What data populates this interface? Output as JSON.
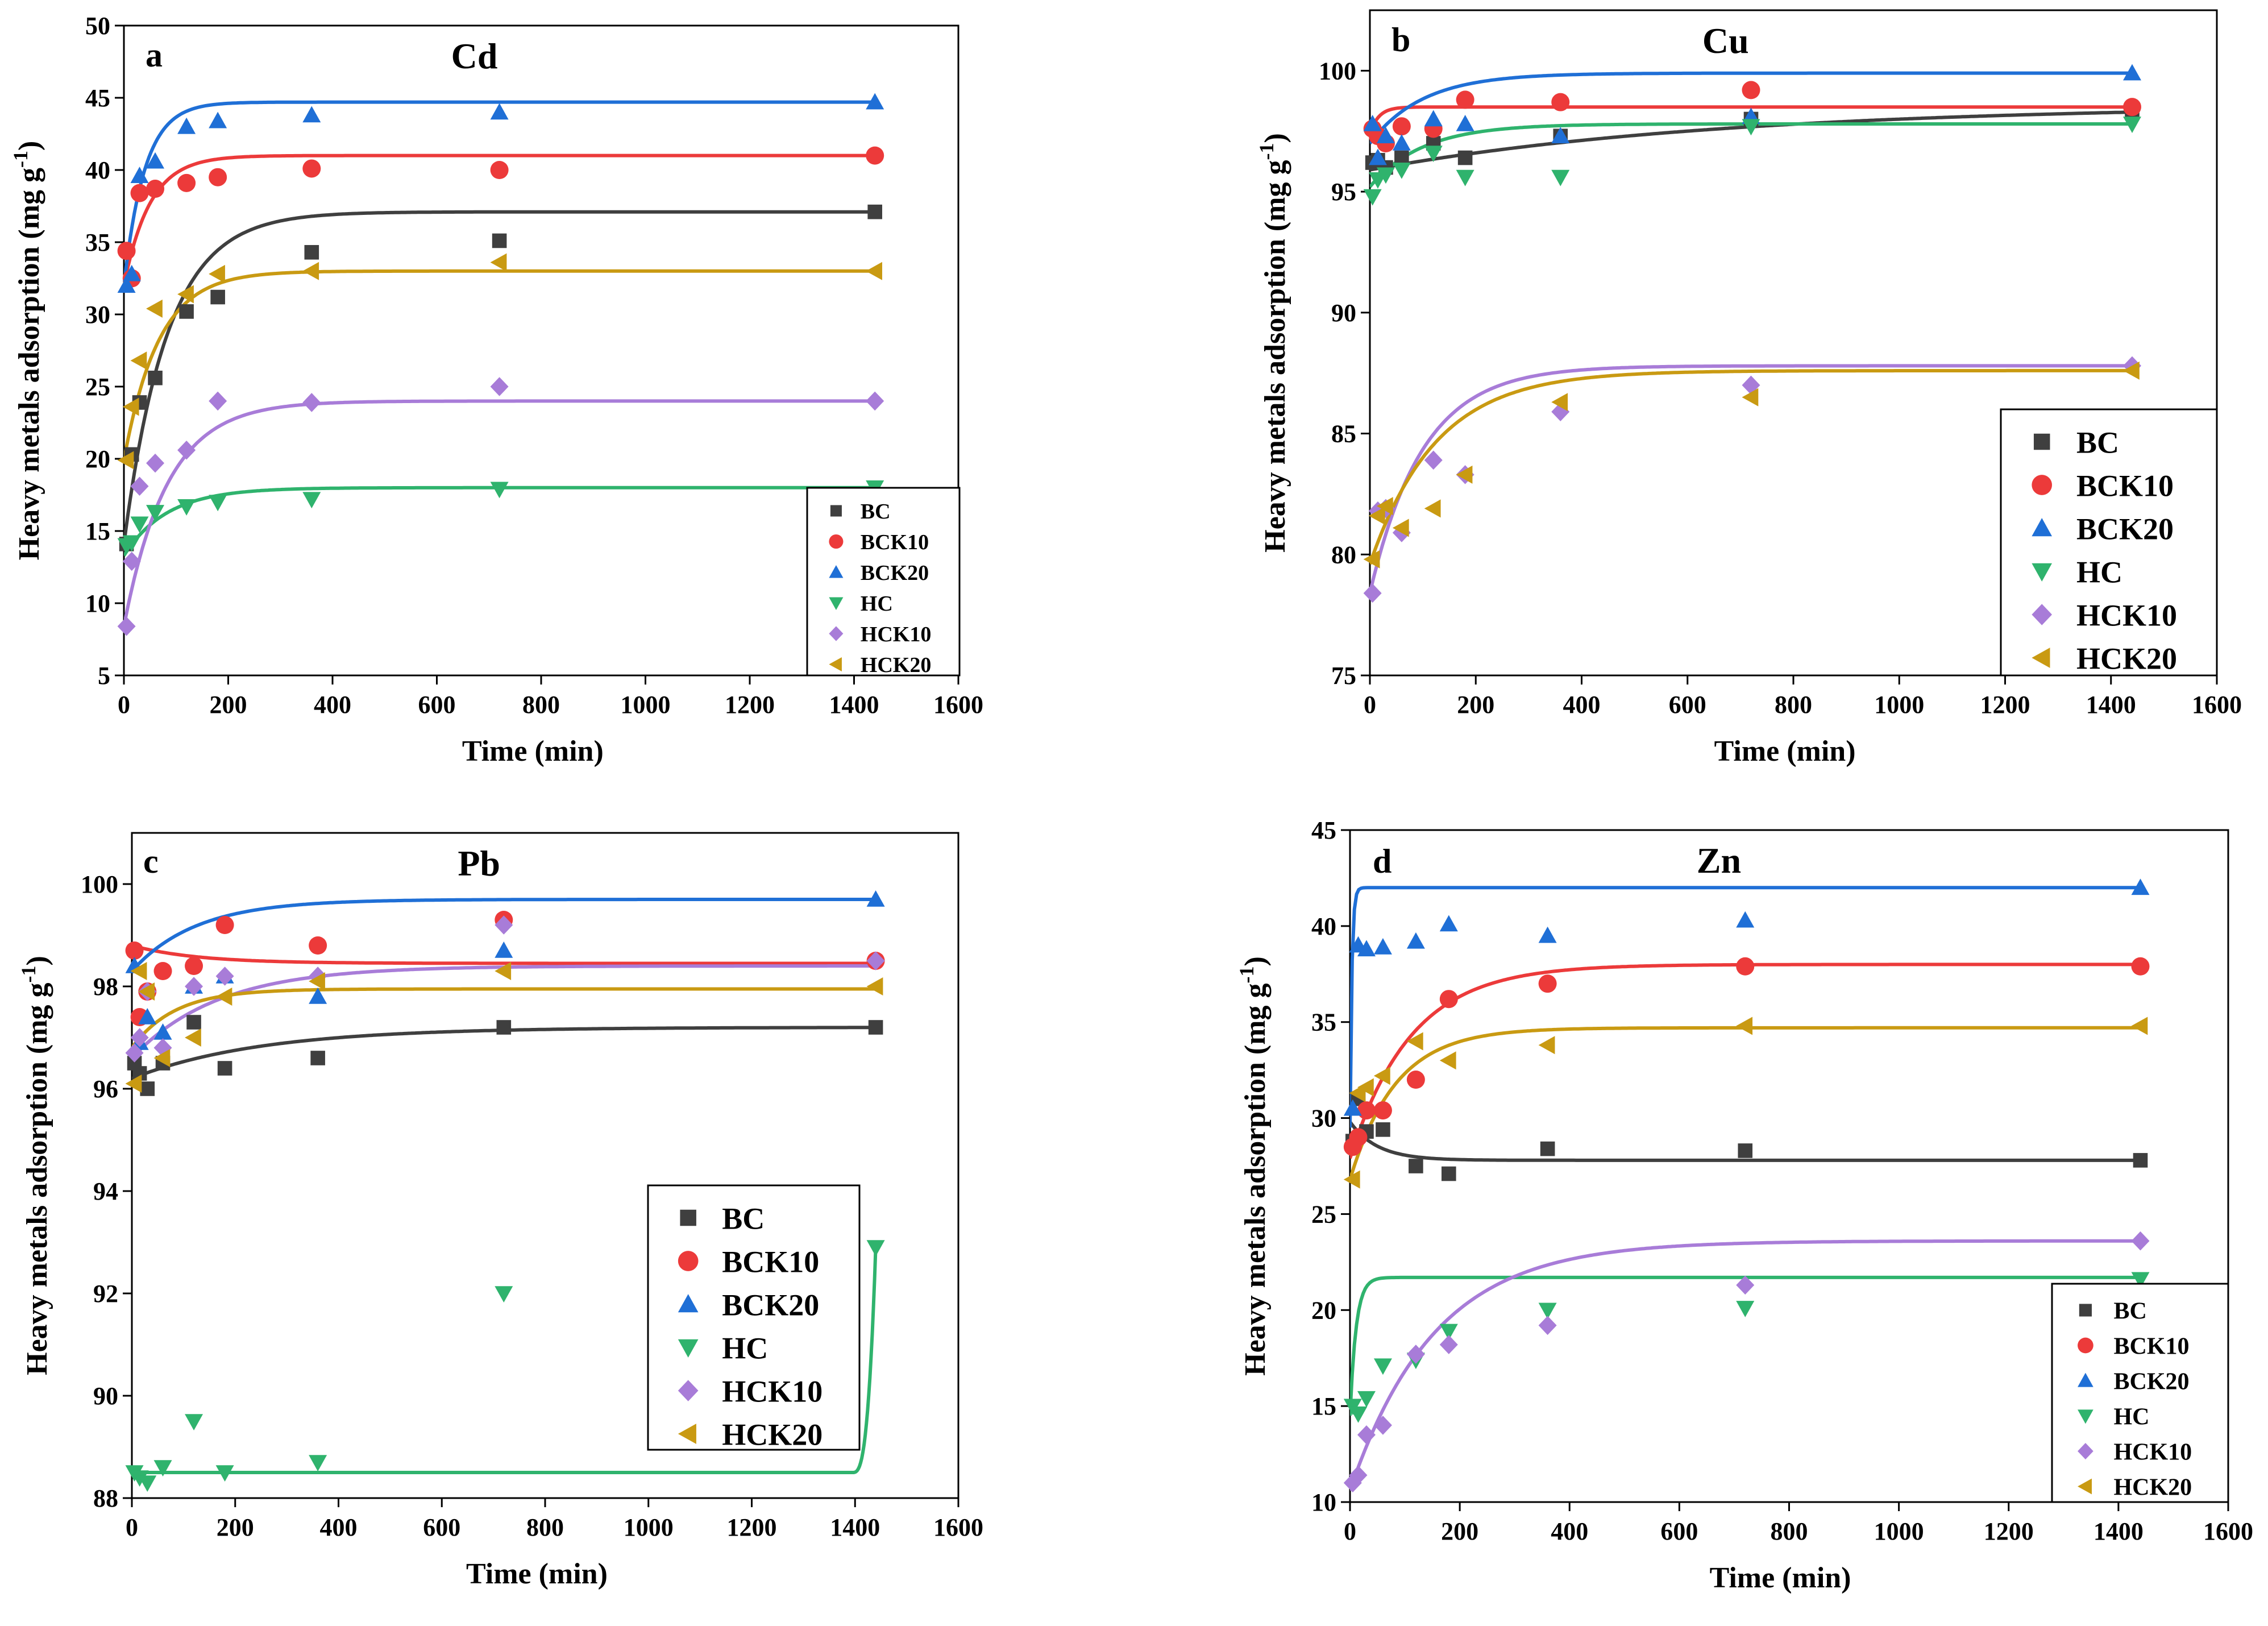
{
  "colors": {
    "BC": "#3f3f3f",
    "BCK10": "#ec3a3a",
    "BCK20": "#1f6fd6",
    "HC": "#2fb36d",
    "HCK10": "#a87cd8",
    "HCK20": "#c99a12"
  },
  "chart_data": [
    {
      "type": "scatter",
      "panel": "a",
      "title": "Cd",
      "xlabel": "Time (min)",
      "ylabel_main": "Heavy metals adsorption (mg g",
      "ylabel_sup": "-1",
      "ylabel_end": ")",
      "xlim": [
        0,
        1600
      ],
      "ylim": [
        5,
        50
      ],
      "xticks": [
        0,
        200,
        400,
        600,
        800,
        1000,
        1200,
        1400,
        1600
      ],
      "yticks": [
        5,
        10,
        15,
        20,
        25,
        30,
        35,
        40,
        45,
        50
      ],
      "legend_position": "bottom-right",
      "series": [
        {
          "name": "BC",
          "marker": "square",
          "x": [
            5,
            15,
            30,
            60,
            120,
            180,
            360,
            720,
            1440
          ],
          "y": [
            14.1,
            20.3,
            23.9,
            25.6,
            30.2,
            31.2,
            34.3,
            35.1,
            37.1
          ],
          "fit": {
            "type": "exp",
            "y0": 14.1,
            "ymax": 37.1,
            "k": 0.012
          }
        },
        {
          "name": "BCK10",
          "marker": "circle",
          "x": [
            5,
            15,
            30,
            60,
            120,
            180,
            360,
            720,
            1440
          ],
          "y": [
            34.4,
            32.5,
            38.4,
            38.7,
            39.1,
            39.5,
            40.1,
            40.0,
            41.0
          ],
          "fit": {
            "type": "exp",
            "y0": 32.0,
            "ymax": 41.0,
            "k": 0.02
          }
        },
        {
          "name": "BCK20",
          "marker": "triangle-up",
          "x": [
            5,
            15,
            30,
            60,
            120,
            180,
            360,
            720,
            1440
          ],
          "y": [
            32.0,
            32.8,
            39.6,
            40.6,
            43.0,
            43.4,
            43.8,
            44.0,
            44.7
          ],
          "fit": {
            "type": "exp",
            "y0": 32.0,
            "ymax": 44.7,
            "k": 0.025
          }
        },
        {
          "name": "HC",
          "marker": "triangle-down",
          "x": [
            5,
            15,
            30,
            60,
            120,
            180,
            360,
            720,
            1440
          ],
          "y": [
            14.0,
            14.2,
            15.5,
            16.3,
            16.7,
            17.0,
            17.2,
            17.9,
            18.0
          ],
          "fit": {
            "type": "exp",
            "y0": 13.3,
            "ymax": 18.0,
            "k": 0.012
          }
        },
        {
          "name": "HCK10",
          "marker": "diamond",
          "x": [
            5,
            15,
            30,
            60,
            120,
            180,
            360,
            720,
            1440
          ],
          "y": [
            8.4,
            12.9,
            18.1,
            19.7,
            20.6,
            24.0,
            23.9,
            25.0,
            24.0
          ],
          "fit": {
            "type": "exp",
            "y0": 8.4,
            "ymax": 24.0,
            "k": 0.012
          }
        },
        {
          "name": "HCK20",
          "marker": "triangle-left",
          "x": [
            5,
            15,
            30,
            60,
            120,
            180,
            360,
            720,
            1440
          ],
          "y": [
            19.9,
            23.6,
            26.8,
            30.4,
            31.4,
            32.8,
            33.0,
            33.6,
            33.0
          ],
          "fit": {
            "type": "exp",
            "y0": 19.9,
            "ymax": 33.0,
            "k": 0.015
          }
        }
      ]
    },
    {
      "type": "scatter",
      "panel": "b",
      "title": "Cu",
      "xlabel": "Time (min)",
      "ylabel_main": "Heavy metals adsorption (mg g",
      "ylabel_sup": "-1",
      "ylabel_end": ")",
      "xlim": [
        0,
        1600
      ],
      "ylim": [
        75,
        102.5
      ],
      "xticks": [
        0,
        200,
        400,
        600,
        800,
        1000,
        1200,
        1400,
        1600
      ],
      "yticks": [
        75,
        80,
        85,
        90,
        95,
        100
      ],
      "legend_position": "right-middle",
      "series": [
        {
          "name": "BC",
          "marker": "square",
          "x": [
            5,
            15,
            30,
            60,
            120,
            180,
            360,
            720,
            1440
          ],
          "y": [
            96.2,
            96.3,
            96.0,
            96.4,
            97.0,
            96.4,
            97.3,
            98.0,
            98.3
          ],
          "fit": {
            "type": "exp",
            "y0": 95.9,
            "ymax": 98.6,
            "k": 0.0015
          }
        },
        {
          "name": "BCK10",
          "marker": "circle",
          "x": [
            5,
            15,
            30,
            60,
            120,
            180,
            360,
            720,
            1440
          ],
          "y": [
            97.6,
            97.3,
            97.0,
            97.7,
            97.6,
            98.8,
            98.7,
            99.2,
            98.5
          ],
          "fit": {
            "type": "exp",
            "y0": 97.4,
            "ymax": 98.5,
            "k": 0.06
          }
        },
        {
          "name": "BCK20",
          "marker": "triangle-up",
          "x": [
            5,
            15,
            30,
            60,
            120,
            180,
            360,
            720,
            1440
          ],
          "y": [
            97.8,
            96.4,
            97.3,
            97.0,
            98.0,
            97.8,
            97.3,
            98.1,
            99.9
          ],
          "fit": {
            "type": "exp",
            "y0": 97.0,
            "ymax": 99.9,
            "k": 0.01
          }
        },
        {
          "name": "HC",
          "marker": "triangle-down",
          "x": [
            5,
            15,
            30,
            60,
            120,
            180,
            360,
            720,
            1440
          ],
          "y": [
            94.8,
            95.5,
            95.7,
            95.9,
            96.6,
            95.6,
            95.6,
            97.7,
            97.8
          ],
          "fit": {
            "type": "exp",
            "y0": 95.2,
            "ymax": 97.8,
            "k": 0.01
          }
        },
        {
          "name": "HCK10",
          "marker": "diamond",
          "x": [
            5,
            15,
            30,
            60,
            120,
            180,
            360,
            720,
            1440
          ],
          "y": [
            78.4,
            81.8,
            81.9,
            80.9,
            83.9,
            83.3,
            85.9,
            87.0,
            87.8
          ],
          "fit": {
            "type": "exp",
            "y0": 78.4,
            "ymax": 87.8,
            "k": 0.01
          }
        },
        {
          "name": "HCK20",
          "marker": "triangle-left",
          "x": [
            5,
            15,
            30,
            60,
            120,
            180,
            360,
            720,
            1440
          ],
          "y": [
            79.8,
            81.6,
            82.0,
            81.1,
            81.9,
            83.3,
            86.3,
            86.5,
            87.6
          ],
          "fit": {
            "type": "exp",
            "y0": 79.6,
            "ymax": 87.6,
            "k": 0.008
          }
        }
      ]
    },
    {
      "type": "scatter",
      "panel": "c",
      "title": "Pb",
      "xlabel": "Time (min)",
      "ylabel_main": "Heavy metals adsorption (mg g",
      "ylabel_sup": "-1",
      "ylabel_end": ")",
      "xlim": [
        0,
        1600
      ],
      "ylim": [
        88,
        101
      ],
      "xticks": [
        0,
        200,
        400,
        600,
        800,
        1000,
        1200,
        1400,
        1600
      ],
      "yticks": [
        88,
        90,
        92,
        94,
        96,
        98,
        100
      ],
      "legend_position": "bottom-right",
      "series": [
        {
          "name": "BC",
          "marker": "square",
          "x": [
            5,
            15,
            30,
            60,
            120,
            180,
            360,
            720,
            1440
          ],
          "y": [
            96.5,
            96.3,
            96.0,
            96.5,
            97.3,
            96.4,
            96.6,
            97.2,
            97.2
          ],
          "fit": {
            "type": "exp",
            "y0": 96.2,
            "ymax": 97.2,
            "k": 0.004
          }
        },
        {
          "name": "BCK10",
          "marker": "circle",
          "x": [
            5,
            15,
            30,
            60,
            120,
            180,
            360,
            720,
            1440
          ],
          "y": [
            98.7,
            97.4,
            97.9,
            98.3,
            98.4,
            99.2,
            98.8,
            99.3,
            98.5
          ],
          "fit": {
            "type": "exp",
            "y0": 98.8,
            "ymax": 98.45,
            "k": 0.008
          }
        },
        {
          "name": "BCK20",
          "marker": "triangle-up",
          "x": [
            5,
            15,
            30,
            60,
            120,
            180,
            360,
            720,
            1440
          ],
          "y": [
            98.4,
            96.9,
            97.4,
            97.1,
            98.0,
            98.2,
            97.8,
            98.7,
            99.7
          ],
          "fit": {
            "type": "exp",
            "y0": 98.3,
            "ymax": 99.7,
            "k": 0.008
          }
        },
        {
          "name": "HC",
          "marker": "triangle-down",
          "x": [
            5,
            15,
            30,
            60,
            120,
            180,
            360,
            720,
            1440
          ],
          "y": [
            88.5,
            88.4,
            88.3,
            88.6,
            89.5,
            88.5,
            88.7,
            92.0,
            92.9
          ],
          "fit": {
            "type": "step",
            "level": 88.5,
            "rise_start": 1395,
            "end": 92.9
          }
        },
        {
          "name": "HCK10",
          "marker": "diamond",
          "x": [
            5,
            15,
            30,
            60,
            120,
            180,
            360,
            720,
            1440
          ],
          "y": [
            96.7,
            97.0,
            97.9,
            96.8,
            98.0,
            98.2,
            98.2,
            99.2,
            98.5
          ],
          "fit": {
            "type": "exp",
            "y0": 96.6,
            "ymax": 98.4,
            "k": 0.006
          }
        },
        {
          "name": "HCK20",
          "marker": "triangle-left",
          "x": [
            5,
            15,
            30,
            60,
            120,
            180,
            360,
            720,
            1440
          ],
          "y": [
            96.1,
            98.3,
            97.9,
            96.6,
            97.0,
            97.8,
            98.1,
            98.3,
            98.0
          ],
          "fit": {
            "type": "exp",
            "y0": 96.8,
            "ymax": 97.95,
            "k": 0.012
          }
        }
      ]
    },
    {
      "type": "scatter",
      "panel": "d",
      "title": "Zn",
      "xlabel": "Time (min)",
      "ylabel_main": "Heavy metals adsorption (mg g",
      "ylabel_sup": "-1",
      "ylabel_end": ")",
      "xlim": [
        0,
        1600
      ],
      "ylim": [
        10,
        45
      ],
      "xticks": [
        0,
        200,
        400,
        600,
        800,
        1000,
        1200,
        1400,
        1600
      ],
      "yticks": [
        10,
        15,
        20,
        25,
        30,
        35,
        40,
        45
      ],
      "legend_position": "bottom-right",
      "series": [
        {
          "name": "BC",
          "marker": "square",
          "x": [
            5,
            15,
            30,
            60,
            120,
            180,
            360,
            720,
            1440
          ],
          "y": [
            28.8,
            31.0,
            29.3,
            29.4,
            27.5,
            27.1,
            28.4,
            28.3,
            27.8
          ],
          "fit": {
            "type": "exp",
            "y0": 29.8,
            "ymax": 27.8,
            "k": 0.02
          }
        },
        {
          "name": "BCK10",
          "marker": "circle",
          "x": [
            5,
            15,
            30,
            60,
            120,
            180,
            360,
            720,
            1440
          ],
          "y": [
            28.5,
            29.0,
            30.4,
            30.4,
            32.0,
            36.2,
            37.0,
            37.9,
            37.9
          ],
          "fit": {
            "type": "exp",
            "y0": 27.9,
            "ymax": 38.0,
            "k": 0.009
          }
        },
        {
          "name": "BCK20",
          "marker": "triangle-up",
          "x": [
            5,
            15,
            30,
            60,
            120,
            180,
            360,
            720,
            1440
          ],
          "y": [
            30.5,
            39.0,
            38.8,
            38.9,
            39.2,
            40.1,
            39.5,
            40.3,
            42.0
          ],
          "fit": {
            "type": "exp",
            "y0": 29.5,
            "ymax": 42.0,
            "k": 0.3
          }
        },
        {
          "name": "HC",
          "marker": "triangle-down",
          "x": [
            5,
            15,
            30,
            60,
            120,
            180,
            360,
            720,
            1440
          ],
          "y": [
            15.0,
            14.6,
            15.4,
            17.1,
            17.4,
            18.9,
            20.0,
            20.1,
            21.6
          ],
          "fit": {
            "type": "exp",
            "y0": 14.5,
            "ymax": 21.7,
            "k": 0.09
          }
        },
        {
          "name": "HCK10",
          "marker": "diamond",
          "x": [
            5,
            15,
            30,
            60,
            120,
            180,
            360,
            720,
            1440
          ],
          "y": [
            11.0,
            11.4,
            13.5,
            14.0,
            17.7,
            18.2,
            19.2,
            21.3,
            23.6
          ],
          "fit": {
            "type": "exp",
            "y0": 10.6,
            "ymax": 23.6,
            "k": 0.0065
          }
        },
        {
          "name": "HCK20",
          "marker": "triangle-left",
          "x": [
            5,
            15,
            30,
            60,
            120,
            180,
            360,
            720,
            1440
          ],
          "y": [
            26.8,
            31.3,
            31.6,
            32.2,
            34.0,
            33.0,
            33.8,
            34.8,
            34.8
          ],
          "fit": {
            "type": "exp",
            "y0": 26.8,
            "ymax": 34.7,
            "k": 0.012
          }
        }
      ]
    }
  ]
}
